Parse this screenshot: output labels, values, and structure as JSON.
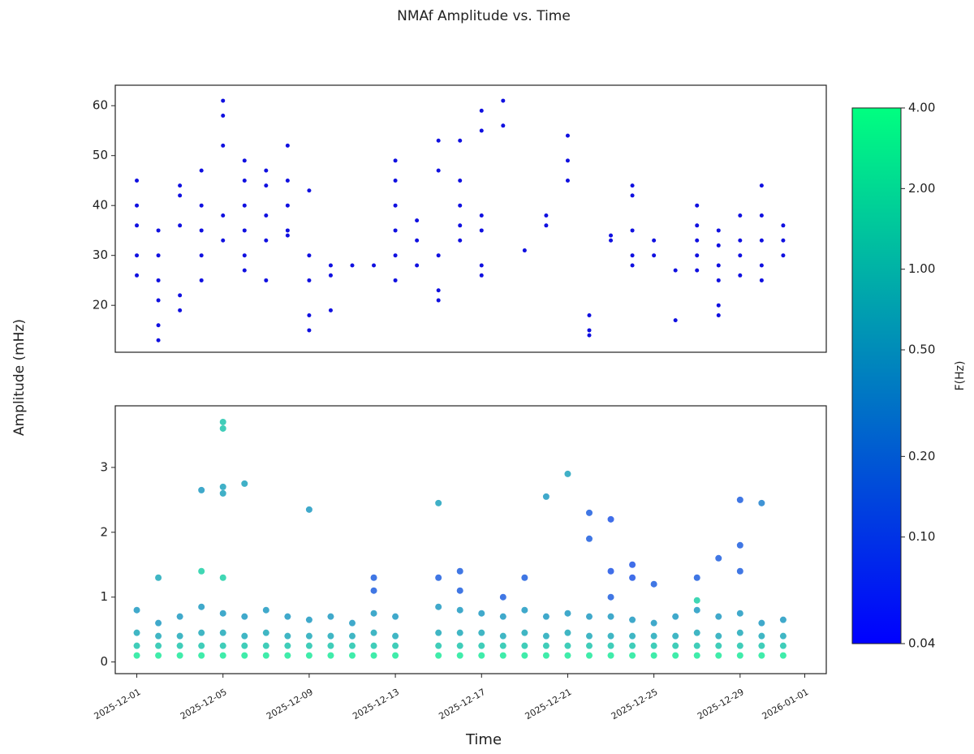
{
  "chart_data": [
    {
      "type": "scatter",
      "title": "NMAf Amplitude vs. Time",
      "ylabel": "Amplitude (mHz)",
      "color": "#1010e0",
      "xlim": [
        "2025-11-30",
        "2026-01-02"
      ],
      "ylim": [
        10.6,
        64.1
      ],
      "yticks": [
        20,
        30,
        40,
        50,
        60
      ],
      "x": [
        "2025-12-01",
        "2025-12-01",
        "2025-12-01",
        "2025-12-01",
        "2025-12-01",
        "2025-12-02",
        "2025-12-02",
        "2025-12-02",
        "2025-12-02",
        "2025-12-02",
        "2025-12-02",
        "2025-12-03",
        "2025-12-03",
        "2025-12-03",
        "2025-12-03",
        "2025-12-03",
        "2025-12-04",
        "2025-12-04",
        "2025-12-04",
        "2025-12-04",
        "2025-12-04",
        "2025-12-05",
        "2025-12-05",
        "2025-12-05",
        "2025-12-05",
        "2025-12-05",
        "2025-12-06",
        "2025-12-06",
        "2025-12-06",
        "2025-12-06",
        "2025-12-06",
        "2025-12-06",
        "2025-12-07",
        "2025-12-07",
        "2025-12-07",
        "2025-12-07",
        "2025-12-07",
        "2025-12-08",
        "2025-12-08",
        "2025-12-08",
        "2025-12-08",
        "2025-12-08",
        "2025-12-09",
        "2025-12-09",
        "2025-12-09",
        "2025-12-09",
        "2025-12-09",
        "2025-12-10",
        "2025-12-10",
        "2025-12-10",
        "2025-12-11",
        "2025-12-12",
        "2025-12-13",
        "2025-12-13",
        "2025-12-13",
        "2025-12-13",
        "2025-12-13",
        "2025-12-13",
        "2025-12-14",
        "2025-12-14",
        "2025-12-14",
        "2025-12-15",
        "2025-12-15",
        "2025-12-15",
        "2025-12-15",
        "2025-12-15",
        "2025-12-16",
        "2025-12-16",
        "2025-12-16",
        "2025-12-16",
        "2025-12-16",
        "2025-12-17",
        "2025-12-17",
        "2025-12-17",
        "2025-12-17",
        "2025-12-17",
        "2025-12-17",
        "2025-12-18",
        "2025-12-18",
        "2025-12-19",
        "2025-12-20",
        "2025-12-20",
        "2025-12-21",
        "2025-12-21",
        "2025-12-21",
        "2025-12-22",
        "2025-12-22",
        "2025-12-22",
        "2025-12-23",
        "2025-12-23",
        "2025-12-24",
        "2025-12-24",
        "2025-12-24",
        "2025-12-24",
        "2025-12-24",
        "2025-12-25",
        "2025-12-25",
        "2025-12-26",
        "2025-12-26",
        "2025-12-27",
        "2025-12-27",
        "2025-12-27",
        "2025-12-27",
        "2025-12-27",
        "2025-12-28",
        "2025-12-28",
        "2025-12-28",
        "2025-12-28",
        "2025-12-28",
        "2025-12-28",
        "2025-12-29",
        "2025-12-29",
        "2025-12-29",
        "2025-12-29",
        "2025-12-30",
        "2025-12-30",
        "2025-12-30",
        "2025-12-30",
        "2025-12-30",
        "2025-12-31",
        "2025-12-31",
        "2025-12-31"
      ],
      "values": [
        45,
        40,
        36,
        30,
        26,
        35,
        30,
        25,
        21,
        16,
        13,
        19,
        22,
        36,
        42,
        44,
        40,
        35,
        30,
        47,
        25,
        61,
        58,
        52,
        38,
        33,
        40,
        35,
        30,
        45,
        49,
        27,
        38,
        44,
        33,
        25,
        47,
        40,
        35,
        52,
        45,
        34,
        43,
        30,
        25,
        18,
        15,
        28,
        26,
        19,
        28,
        28,
        49,
        45,
        40,
        35,
        30,
        25,
        37,
        33,
        28,
        53,
        47,
        30,
        23,
        21,
        53,
        45,
        40,
        36,
        33,
        59,
        55,
        38,
        35,
        28,
        26,
        61,
        56,
        31,
        38,
        36,
        54,
        49,
        45,
        18,
        15,
        14,
        34,
        33,
        44,
        42,
        35,
        30,
        28,
        33,
        30,
        17,
        27,
        30,
        27,
        40,
        36,
        33,
        35,
        32,
        28,
        25,
        20,
        18,
        38,
        33,
        30,
        26,
        44,
        38,
        33,
        28,
        25,
        36,
        33,
        30
      ]
    },
    {
      "type": "scatter",
      "xlabel": "Time",
      "xlim": [
        "2025-11-30",
        "2026-01-02"
      ],
      "ylim": [
        -0.18,
        3.95
      ],
      "yticks": [
        0,
        1,
        2,
        3
      ],
      "xticks": [
        "2025-12-01",
        "2025-12-05",
        "2025-12-09",
        "2025-12-13",
        "2025-12-17",
        "2025-12-21",
        "2025-12-25",
        "2025-12-29",
        "2026-01-01"
      ],
      "colorbar": {
        "label": "F(Hz)",
        "log": true,
        "lim": [
          0.04,
          4
        ],
        "ticks": [
          {
            "value": 0.04,
            "label": "0.04"
          },
          {
            "value": 0.1,
            "label": "0.10"
          },
          {
            "value": 0.2,
            "label": "0.20"
          },
          {
            "value": 0.5,
            "label": "0.50"
          },
          {
            "value": 1,
            "label": "1.00"
          },
          {
            "value": 2,
            "label": "2.00"
          },
          {
            "value": 4,
            "label": "4.00"
          }
        ]
      },
      "x": [
        "2025-12-01",
        "2025-12-01",
        "2025-12-01",
        "2025-12-01",
        "2025-12-02",
        "2025-12-02",
        "2025-12-02",
        "2025-12-02",
        "2025-12-03",
        "2025-12-03",
        "2025-12-03",
        "2025-12-03",
        "2025-12-04",
        "2025-12-04",
        "2025-12-04",
        "2025-12-04",
        "2025-12-05",
        "2025-12-05",
        "2025-12-05",
        "2025-12-05",
        "2025-12-06",
        "2025-12-06",
        "2025-12-06",
        "2025-12-06",
        "2025-12-07",
        "2025-12-07",
        "2025-12-07",
        "2025-12-07",
        "2025-12-08",
        "2025-12-08",
        "2025-12-08",
        "2025-12-08",
        "2025-12-09",
        "2025-12-09",
        "2025-12-09",
        "2025-12-09",
        "2025-12-10",
        "2025-12-10",
        "2025-12-10",
        "2025-12-10",
        "2025-12-11",
        "2025-12-11",
        "2025-12-11",
        "2025-12-11",
        "2025-12-12",
        "2025-12-12",
        "2025-12-12",
        "2025-12-12",
        "2025-12-13",
        "2025-12-13",
        "2025-12-13",
        "2025-12-13",
        "2025-12-15",
        "2025-12-15",
        "2025-12-15",
        "2025-12-15",
        "2025-12-16",
        "2025-12-16",
        "2025-12-16",
        "2025-12-16",
        "2025-12-17",
        "2025-12-17",
        "2025-12-17",
        "2025-12-17",
        "2025-12-18",
        "2025-12-18",
        "2025-12-18",
        "2025-12-18",
        "2025-12-19",
        "2025-12-19",
        "2025-12-19",
        "2025-12-19",
        "2025-12-20",
        "2025-12-20",
        "2025-12-20",
        "2025-12-20",
        "2025-12-21",
        "2025-12-21",
        "2025-12-21",
        "2025-12-21",
        "2025-12-22",
        "2025-12-22",
        "2025-12-22",
        "2025-12-22",
        "2025-12-23",
        "2025-12-23",
        "2025-12-23",
        "2025-12-23",
        "2025-12-24",
        "2025-12-24",
        "2025-12-24",
        "2025-12-24",
        "2025-12-25",
        "2025-12-25",
        "2025-12-25",
        "2025-12-25",
        "2025-12-26",
        "2025-12-26",
        "2025-12-26",
        "2025-12-26",
        "2025-12-27",
        "2025-12-27",
        "2025-12-27",
        "2025-12-27",
        "2025-12-28",
        "2025-12-28",
        "2025-12-28",
        "2025-12-28",
        "2025-12-29",
        "2025-12-29",
        "2025-12-29",
        "2025-12-29",
        "2025-12-30",
        "2025-12-30",
        "2025-12-30",
        "2025-12-30",
        "2025-12-31",
        "2025-12-31",
        "2025-12-31",
        "2025-12-31",
        "2025-12-02",
        "2025-12-04",
        "2025-12-04",
        "2025-12-05",
        "2025-12-05",
        "2025-12-05",
        "2025-12-05",
        "2025-12-05",
        "2025-12-06",
        "2025-12-09",
        "2025-12-12",
        "2025-12-12",
        "2025-12-15",
        "2025-12-15",
        "2025-12-16",
        "2025-12-16",
        "2025-12-18",
        "2025-12-19",
        "2025-12-20",
        "2025-12-21",
        "2025-12-22",
        "2025-12-22",
        "2025-12-23",
        "2025-12-23",
        "2025-12-23",
        "2025-12-24",
        "2025-12-24",
        "2025-12-25",
        "2025-12-27",
        "2025-12-27",
        "2025-12-28",
        "2025-12-29",
        "2025-12-29",
        "2025-12-29",
        "2025-12-30"
      ],
      "values": [
        0.1,
        0.25,
        0.45,
        0.8,
        0.1,
        0.25,
        0.4,
        0.6,
        0.1,
        0.25,
        0.4,
        0.7,
        0.1,
        0.25,
        0.45,
        0.85,
        0.1,
        0.25,
        0.45,
        0.75,
        0.1,
        0.25,
        0.4,
        0.7,
        0.1,
        0.25,
        0.45,
        0.8,
        0.1,
        0.25,
        0.4,
        0.7,
        0.1,
        0.25,
        0.4,
        0.65,
        0.1,
        0.25,
        0.4,
        0.7,
        0.1,
        0.25,
        0.4,
        0.6,
        0.1,
        0.25,
        0.45,
        0.75,
        0.1,
        0.25,
        0.4,
        0.7,
        0.1,
        0.25,
        0.45,
        0.85,
        0.1,
        0.25,
        0.45,
        0.8,
        0.1,
        0.25,
        0.45,
        0.75,
        0.1,
        0.25,
        0.4,
        0.7,
        0.1,
        0.25,
        0.45,
        0.8,
        0.1,
        0.25,
        0.4,
        0.7,
        0.1,
        0.25,
        0.45,
        0.75,
        0.1,
        0.25,
        0.4,
        0.7,
        0.1,
        0.25,
        0.4,
        0.7,
        0.1,
        0.25,
        0.4,
        0.65,
        0.1,
        0.25,
        0.4,
        0.6,
        0.1,
        0.25,
        0.4,
        0.7,
        0.1,
        0.25,
        0.45,
        0.8,
        0.1,
        0.25,
        0.4,
        0.7,
        0.1,
        0.25,
        0.45,
        0.75,
        0.1,
        0.25,
        0.4,
        0.6,
        0.1,
        0.25,
        0.4,
        0.65,
        1.3,
        1.4,
        2.65,
        3.7,
        3.6,
        2.7,
        2.6,
        1.3,
        2.75,
        2.35,
        1.3,
        1.1,
        1.3,
        2.45,
        1.4,
        1.1,
        1.0,
        1.3,
        2.55,
        2.9,
        1.9,
        2.3,
        1.4,
        2.2,
        1.0,
        1.3,
        1.5,
        1.2,
        1.3,
        0.95,
        1.6,
        2.5,
        1.8,
        1.4,
        2.45
      ],
      "c": [
        2.5,
        1.2,
        0.7,
        0.5,
        2.5,
        1.2,
        0.7,
        0.5,
        2.5,
        1.2,
        0.7,
        0.5,
        2.5,
        1.2,
        0.7,
        0.5,
        2.5,
        1.2,
        0.7,
        0.5,
        2.5,
        1.2,
        0.7,
        0.5,
        2.5,
        1.2,
        0.7,
        0.5,
        2.5,
        1.2,
        0.7,
        0.5,
        2.5,
        1.2,
        0.7,
        0.5,
        2.5,
        1.2,
        0.7,
        0.5,
        2.5,
        1.2,
        0.7,
        0.5,
        2.5,
        1.2,
        0.7,
        0.5,
        2.5,
        1.2,
        0.7,
        0.5,
        2.5,
        1.2,
        0.7,
        0.5,
        2.5,
        1.2,
        0.7,
        0.5,
        2.5,
        1.2,
        0.7,
        0.5,
        2.5,
        1.2,
        0.7,
        0.5,
        2.5,
        1.2,
        0.7,
        0.5,
        2.5,
        1.2,
        0.7,
        0.5,
        2.5,
        1.2,
        0.7,
        0.5,
        2.5,
        1.2,
        0.7,
        0.5,
        2.5,
        1.2,
        0.7,
        0.5,
        2.5,
        1.2,
        0.7,
        0.5,
        2.5,
        1.2,
        0.7,
        0.5,
        2.5,
        1.2,
        0.7,
        0.5,
        2.5,
        1.2,
        0.7,
        0.5,
        2.5,
        1.2,
        0.7,
        0.5,
        2.5,
        1.2,
        0.7,
        0.5,
        2.5,
        1.2,
        0.7,
        0.5,
        2.5,
        1.2,
        0.7,
        0.5,
        0.7,
        1.5,
        0.5,
        1.2,
        1.2,
        0.6,
        0.6,
        1.5,
        0.6,
        0.5,
        0.15,
        0.15,
        0.15,
        0.6,
        0.15,
        0.15,
        0.15,
        0.15,
        0.5,
        0.6,
        0.15,
        0.15,
        0.12,
        0.12,
        0.15,
        0.12,
        0.12,
        0.15,
        0.15,
        1.5,
        0.15,
        0.15,
        0.15,
        0.15,
        0.3
      ]
    }
  ]
}
